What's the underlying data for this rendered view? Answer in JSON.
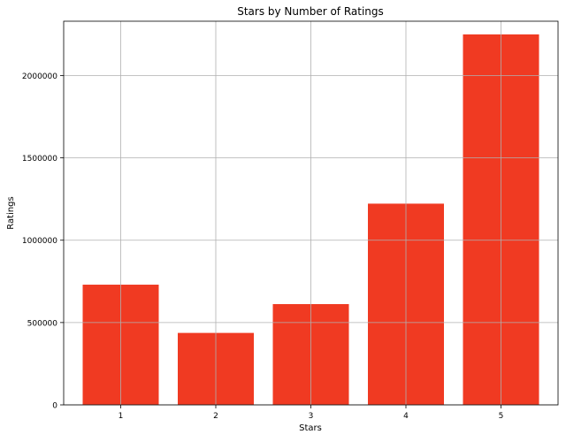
{
  "chart_data": {
    "type": "bar",
    "title": "Stars by Number of Ratings",
    "xlabel": "Stars",
    "ylabel": "Ratings",
    "categories": [
      "1",
      "2",
      "3",
      "4",
      "5"
    ],
    "values": [
      730000,
      437000,
      612000,
      1222000,
      2250000
    ],
    "ylim": [
      0,
      2330000
    ],
    "yticks": [
      0,
      500000,
      1000000,
      1500000,
      2000000
    ],
    "ytick_labels": [
      "0",
      "500000",
      "1000000",
      "1500000",
      "2000000"
    ],
    "grid": true,
    "bar_color": "#f03a22",
    "grid_color": "#b0b0b0"
  }
}
